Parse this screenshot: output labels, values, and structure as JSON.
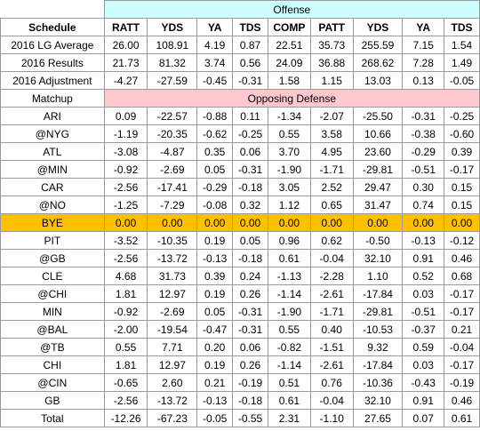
{
  "offense_label": "Offense",
  "opposing_label": "Opposing Defense",
  "header_row": [
    "Schedule",
    "RATT",
    "YDS",
    "YA",
    "TDS",
    "COMP",
    "PATT",
    "YDS",
    "YA",
    "TDS"
  ],
  "top_rows": [
    [
      "2016 LG Average",
      "26.00",
      "108.91",
      "4.19",
      "0.87",
      "22.51",
      "35.73",
      "255.59",
      "7.15",
      "1.54"
    ],
    [
      "2016 Results",
      "21.73",
      "81.32",
      "3.74",
      "0.56",
      "24.09",
      "36.88",
      "268.62",
      "7.28",
      "1.49"
    ],
    [
      "2016 Adjustment",
      "-4.27",
      "-27.59",
      "-0.45",
      "-0.31",
      "1.58",
      "1.15",
      "13.03",
      "0.13",
      "-0.05"
    ]
  ],
  "matchup_label": "Matchup",
  "matchup_rows": [
    [
      "ARI",
      "0.09",
      "-22.57",
      "-0.88",
      "0.11",
      "-1.34",
      "-2.07",
      "-25.50",
      "-0.31",
      "-0.25"
    ],
    [
      "@NYG",
      "-1.19",
      "-20.35",
      "-0.62",
      "-0.25",
      "0.55",
      "3.58",
      "10.66",
      "-0.38",
      "-0.60"
    ],
    [
      "ATL",
      "-3.08",
      "-4.87",
      "0.35",
      "0.06",
      "3.70",
      "4.95",
      "23.60",
      "-0.29",
      "0.39"
    ],
    [
      "@MIN",
      "-0.92",
      "-2.69",
      "0.05",
      "-0.31",
      "-1.90",
      "-1.71",
      "-29.81",
      "-0.51",
      "-0.17"
    ],
    [
      "CAR",
      "-2.56",
      "-17.41",
      "-0.29",
      "-0.18",
      "3.05",
      "2.52",
      "29.47",
      "0.30",
      "0.15"
    ],
    [
      "@NO",
      "-1.25",
      "-7.29",
      "-0.08",
      "0.32",
      "1.12",
      "0.65",
      "31.47",
      "0.74",
      "0.15"
    ],
    [
      "BYE",
      "0.00",
      "0.00",
      "0.00",
      "0.00",
      "0.00",
      "0.00",
      "0.00",
      "0.00",
      "0.00"
    ],
    [
      "PIT",
      "-3.52",
      "-10.35",
      "0.19",
      "0.05",
      "0.96",
      "0.62",
      "-0.50",
      "-0.13",
      "-0.12"
    ],
    [
      "@GB",
      "-2.56",
      "-13.72",
      "-0.13",
      "-0.18",
      "0.61",
      "-0.04",
      "32.10",
      "0.91",
      "0.46"
    ],
    [
      "CLE",
      "4.68",
      "31.73",
      "0.39",
      "0.24",
      "-1.13",
      "-2.28",
      "1.10",
      "0.52",
      "0.68"
    ],
    [
      "@CHI",
      "1.81",
      "12.97",
      "0.19",
      "0.26",
      "-1.14",
      "-2.61",
      "-17.84",
      "0.03",
      "-0.17"
    ],
    [
      "MIN",
      "-0.92",
      "-2.69",
      "0.05",
      "-0.31",
      "-1.90",
      "-1.71",
      "-29.81",
      "-0.51",
      "-0.17"
    ],
    [
      "@BAL",
      "-2.00",
      "-19.54",
      "-0.47",
      "-0.31",
      "0.55",
      "0.40",
      "-10.53",
      "-0.37",
      "0.21"
    ],
    [
      "@TB",
      "0.55",
      "7.71",
      "0.20",
      "0.06",
      "-0.82",
      "-1.51",
      "9.32",
      "0.59",
      "-0.04"
    ],
    [
      "CHI",
      "1.81",
      "12.97",
      "0.19",
      "0.26",
      "-1.14",
      "-2.61",
      "-17.84",
      "0.03",
      "-0.17"
    ],
    [
      "@CIN",
      "-0.65",
      "2.60",
      "0.21",
      "-0.19",
      "0.51",
      "0.76",
      "-10.36",
      "-0.43",
      "-0.19"
    ],
    [
      "GB",
      "-2.56",
      "-13.72",
      "-0.13",
      "-0.18",
      "0.61",
      "-0.04",
      "32.10",
      "0.91",
      "0.46"
    ]
  ],
  "total_row": [
    "Total",
    "-12.26",
    "-67.23",
    "-0.05",
    "-0.55",
    "2.31",
    "-1.10",
    "27.65",
    "0.07",
    "0.61"
  ],
  "colors": {
    "offense_header": "#ccffff",
    "opposing_header": "#ffc7ce",
    "bye_row": "#ffc000",
    "grid": "#9a9a9a"
  }
}
